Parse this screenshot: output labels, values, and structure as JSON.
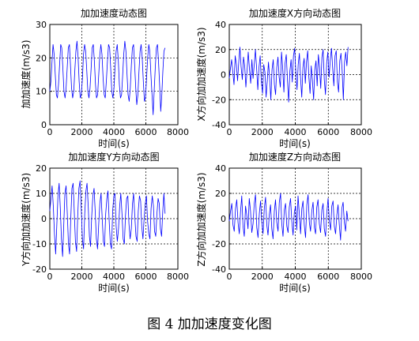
{
  "caption": "图 4  加加速度变化图",
  "chart_data": [
    {
      "type": "line",
      "title": "加加速度动态图",
      "xlabel": "时间(s)",
      "ylabel": "加加速度(m/s3)",
      "xlim": [
        0,
        8000
      ],
      "ylim": [
        0,
        30
      ],
      "xticks": [
        0,
        2000,
        4000,
        6000,
        8000
      ],
      "yticks": [
        0,
        10,
        20,
        30
      ],
      "grid": true,
      "color": "#0000ff",
      "x_end": 7200,
      "series": [
        {
          "values": [
            10,
            13,
            19,
            24,
            21,
            15,
            9,
            8,
            12,
            18,
            24,
            23,
            17,
            10,
            8,
            11,
            17,
            23,
            24,
            18,
            11,
            8,
            10,
            16,
            22,
            25,
            20,
            13,
            8,
            9,
            14,
            21,
            24,
            22,
            16,
            10,
            8,
            11,
            17,
            23,
            24,
            19,
            12,
            8,
            9,
            15,
            21,
            24,
            21,
            14,
            9,
            8,
            13,
            19,
            24,
            23,
            17,
            10,
            8,
            11,
            17,
            22,
            24,
            19,
            12,
            8,
            9,
            15,
            21,
            25,
            22,
            15,
            9,
            7,
            11,
            18,
            23,
            24,
            18,
            11,
            6,
            9,
            16,
            22,
            24,
            20,
            13,
            7,
            8,
            14,
            20,
            24,
            22,
            15,
            9,
            3,
            10,
            17,
            23,
            24,
            19,
            12,
            4,
            9,
            16,
            22,
            23
          ]
        }
      ]
    },
    {
      "type": "line",
      "title": "加加速度X方向动态图",
      "xlabel": "时间(s)",
      "ylabel": "X方向加加速度(m/s3)",
      "xlim": [
        0,
        8000
      ],
      "ylim": [
        -40,
        40
      ],
      "xticks": [
        0,
        2000,
        4000,
        6000,
        8000
      ],
      "yticks": [
        -40,
        -20,
        0,
        20,
        40
      ],
      "grid": true,
      "color": "#0000ff",
      "x_end": 7200,
      "series": [
        {
          "values": [
            -3,
            5,
            12,
            2,
            -8,
            15,
            8,
            -5,
            10,
            22,
            6,
            -4,
            14,
            7,
            -10,
            3,
            18,
            4,
            -7,
            12,
            -3,
            8,
            20,
            5,
            -12,
            6,
            15,
            -6,
            -15,
            8,
            2,
            -18,
            -5,
            10,
            -3,
            -20,
            4,
            12,
            -8,
            -16,
            6,
            14,
            -2,
            -10,
            18,
            5,
            -14,
            9,
            16,
            -4,
            -22,
            3,
            12,
            -6,
            15,
            21,
            2,
            -12,
            8,
            17,
            -3,
            -18,
            6,
            13,
            -7,
            10,
            19,
            -2,
            -15,
            7,
            -5,
            -20,
            4,
            11,
            -9,
            16,
            6,
            -11,
            14,
            20,
            -4,
            -16,
            9,
            18,
            -2,
            12,
            21,
            5,
            -9,
            15,
            19,
            -6,
            -14,
            11,
            17,
            3,
            -20,
            10,
            18,
            7,
            22
          ]
        }
      ]
    },
    {
      "type": "line",
      "title": "加加速度Y方向动态图",
      "xlabel": "时间(s)",
      "ylabel": "Y方向加加速度(m/s3)",
      "xlim": [
        0,
        8000
      ],
      "ylim": [
        -20,
        20
      ],
      "xticks": [
        0,
        2000,
        4000,
        6000,
        8000
      ],
      "yticks": [
        -20,
        -10,
        0,
        10,
        20
      ],
      "grid": true,
      "color": "#0000ff",
      "x_end": 7200,
      "series": [
        {
          "values": [
            3,
            8,
            13,
            5,
            -6,
            -14,
            -3,
            9,
            14,
            4,
            -8,
            -15,
            -2,
            10,
            13,
            2,
            -10,
            -14,
            0,
            12,
            14,
            3,
            -9,
            -13,
            1,
            12,
            15,
            4,
            -8,
            -12,
            2,
            11,
            14,
            5,
            -7,
            -11,
            1,
            9,
            12,
            3,
            -8,
            -12,
            -2,
            6,
            10,
            0,
            -9,
            -11,
            2,
            8,
            11,
            -1,
            -10,
            -12,
            3,
            9,
            10,
            -3,
            -9,
            -4,
            5,
            10,
            2,
            -8,
            -10,
            1,
            8,
            9,
            -2,
            -8,
            -4,
            6,
            10,
            1,
            -7,
            -9,
            3,
            9,
            7,
            -3,
            -8,
            0,
            6,
            9,
            -1,
            -6,
            -8,
            4,
            9,
            5,
            -5,
            -7,
            2,
            8,
            6,
            -4,
            -7,
            3,
            10,
            2
          ]
        }
      ]
    },
    {
      "type": "line",
      "title": "加加速度Z方向动态图",
      "xlabel": "时间(s)",
      "ylabel": "Z方向加加速度(m/s3)",
      "xlim": [
        0,
        8000
      ],
      "ylim": [
        -40,
        40
      ],
      "xticks": [
        0,
        2000,
        4000,
        6000,
        8000
      ],
      "yticks": [
        -40,
        -20,
        0,
        20,
        40
      ],
      "grid": true,
      "color": "#0000ff",
      "x_end": 7200,
      "series": [
        {
          "values": [
            -2,
            6,
            12,
            -5,
            -10,
            8,
            15,
            -3,
            -12,
            5,
            18,
            -6,
            -14,
            10,
            3,
            -8,
            16,
            6,
            -11,
            -4,
            12,
            19,
            -7,
            -15,
            4,
            14,
            -2,
            -12,
            8,
            17,
            -5,
            -13,
            3,
            11,
            -8,
            -16,
            6,
            15,
            -3,
            -10,
            13,
            20,
            -4,
            -14,
            7,
            12,
            -6,
            -11,
            9,
            16,
            -2,
            -13,
            5,
            10,
            -9,
            18,
            4,
            -12,
            8,
            14,
            -5,
            -15,
            11,
            19,
            -3,
            -10,
            6,
            13,
            -7,
            -12,
            9,
            15,
            -4,
            -11,
            7,
            12,
            -8,
            -14,
            5,
            16,
            -2,
            -9,
            10,
            14,
            -6,
            -12,
            3,
            11,
            -5,
            -17,
            8,
            13,
            -3,
            -10,
            6,
            -2
          ]
        }
      ]
    }
  ]
}
